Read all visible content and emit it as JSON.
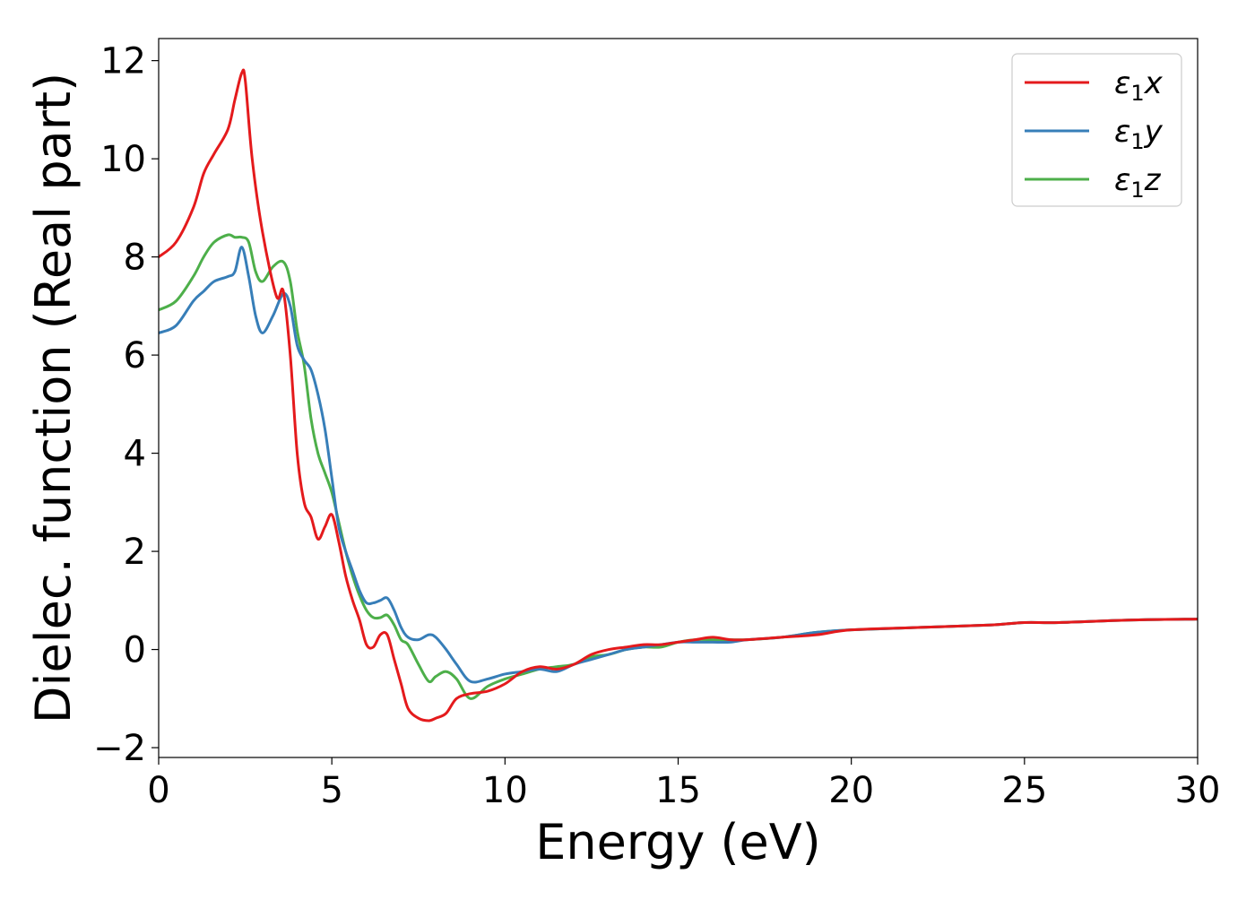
{
  "chart_data": {
    "type": "line",
    "xlabel": "Energy (eV)",
    "ylabel": "Dielec. function (Real part)",
    "xlim": [
      0,
      30
    ],
    "ylim": [
      -2.2,
      12.45
    ],
    "xticks": [
      0,
      5,
      10,
      15,
      20,
      25,
      30
    ],
    "yticks": [
      -2,
      0,
      2,
      4,
      6,
      8,
      10,
      12
    ],
    "xtick_labels": [
      "0",
      "5",
      "10",
      "15",
      "20",
      "25",
      "30"
    ],
    "ytick_labels": [
      "−2",
      "0",
      "2",
      "4",
      "6",
      "8",
      "10",
      "12"
    ],
    "grid": false,
    "legend_position": "top-right",
    "series": [
      {
        "name": "ε1x",
        "legend": {
          "base": "ε",
          "sub": "1",
          "axis": "x"
        },
        "color": "#e41a1c",
        "x": [
          0,
          0.5,
          1.0,
          1.3,
          1.6,
          2.0,
          2.2,
          2.4,
          2.5,
          2.7,
          3.0,
          3.4,
          3.6,
          3.8,
          4.0,
          4.2,
          4.4,
          4.6,
          4.8,
          5.0,
          5.2,
          5.4,
          5.6,
          5.8,
          6.0,
          6.2,
          6.4,
          6.6,
          6.8,
          7.0,
          7.2,
          7.5,
          7.8,
          8.0,
          8.3,
          8.6,
          9.0,
          9.5,
          10.0,
          10.5,
          11.0,
          11.5,
          12.0,
          12.5,
          13.0,
          13.5,
          14.0,
          14.5,
          15.0,
          15.5,
          16.0,
          16.5,
          17.0,
          18.0,
          19.0,
          20.0,
          22.0,
          24.0,
          25.0,
          26.0,
          28.0,
          30.0
        ],
        "y": [
          8.0,
          8.3,
          9.0,
          9.7,
          10.1,
          10.6,
          11.2,
          11.75,
          11.6,
          10.0,
          8.5,
          7.2,
          7.3,
          6.0,
          4.0,
          3.0,
          2.7,
          2.25,
          2.5,
          2.75,
          2.2,
          1.5,
          1.0,
          0.6,
          0.1,
          0.05,
          0.3,
          0.3,
          -0.2,
          -0.7,
          -1.2,
          -1.4,
          -1.45,
          -1.4,
          -1.3,
          -1.0,
          -0.9,
          -0.85,
          -0.7,
          -0.45,
          -0.35,
          -0.4,
          -0.3,
          -0.1,
          0.0,
          0.05,
          0.1,
          0.1,
          0.15,
          0.2,
          0.25,
          0.2,
          0.2,
          0.25,
          0.3,
          0.4,
          0.45,
          0.5,
          0.55,
          0.55,
          0.6,
          0.62
        ]
      },
      {
        "name": "ε1y",
        "legend": {
          "base": "ε",
          "sub": "1",
          "axis": "y"
        },
        "color": "#377eb8",
        "x": [
          0,
          0.5,
          1.0,
          1.3,
          1.6,
          2.0,
          2.2,
          2.4,
          2.6,
          2.8,
          3.0,
          3.3,
          3.6,
          3.8,
          4.0,
          4.2,
          4.4,
          4.6,
          4.8,
          5.0,
          5.2,
          5.4,
          5.6,
          5.8,
          6.0,
          6.2,
          6.4,
          6.6,
          6.8,
          7.0,
          7.2,
          7.5,
          7.8,
          8.0,
          8.3,
          8.6,
          9.0,
          9.5,
          10.0,
          10.5,
          11.0,
          11.5,
          12.0,
          12.5,
          13.0,
          13.5,
          14.0,
          14.5,
          15.0,
          15.5,
          16.0,
          16.5,
          17.0,
          18.0,
          19.0,
          20.0,
          22.0,
          24.0,
          25.0,
          26.0,
          28.0,
          30.0
        ],
        "y": [
          6.45,
          6.6,
          7.1,
          7.3,
          7.5,
          7.6,
          7.7,
          8.2,
          7.6,
          6.8,
          6.45,
          6.8,
          7.25,
          7.0,
          6.2,
          5.9,
          5.7,
          5.2,
          4.5,
          3.5,
          2.5,
          2.0,
          1.6,
          1.2,
          0.95,
          0.95,
          1.0,
          1.05,
          0.8,
          0.45,
          0.25,
          0.2,
          0.3,
          0.25,
          0.0,
          -0.3,
          -0.65,
          -0.6,
          -0.5,
          -0.45,
          -0.4,
          -0.45,
          -0.3,
          -0.2,
          -0.1,
          0.0,
          0.05,
          0.1,
          0.15,
          0.15,
          0.15,
          0.15,
          0.2,
          0.25,
          0.35,
          0.4,
          0.45,
          0.5,
          0.55,
          0.55,
          0.6,
          0.62
        ]
      },
      {
        "name": "ε1z",
        "legend": {
          "base": "ε",
          "sub": "1",
          "axis": "z"
        },
        "color": "#4daf4a",
        "x": [
          0,
          0.5,
          1.0,
          1.3,
          1.6,
          2.0,
          2.2,
          2.4,
          2.6,
          2.8,
          3.0,
          3.3,
          3.6,
          3.8,
          4.0,
          4.2,
          4.4,
          4.6,
          4.8,
          5.0,
          5.2,
          5.4,
          5.6,
          5.8,
          6.0,
          6.2,
          6.4,
          6.6,
          6.8,
          7.0,
          7.2,
          7.5,
          7.8,
          8.0,
          8.3,
          8.6,
          9.0,
          9.5,
          10.0,
          10.5,
          11.0,
          11.5,
          12.0,
          12.5,
          13.0,
          13.5,
          14.0,
          14.5,
          15.0,
          15.5,
          16.0,
          16.5,
          17.0,
          18.0,
          19.0,
          20.0,
          22.0,
          24.0,
          25.0,
          26.0,
          28.0,
          30.0
        ],
        "y": [
          6.92,
          7.1,
          7.6,
          8.0,
          8.3,
          8.45,
          8.4,
          8.4,
          8.3,
          7.7,
          7.5,
          7.8,
          7.9,
          7.5,
          6.5,
          5.8,
          4.7,
          4.0,
          3.6,
          3.2,
          2.6,
          2.0,
          1.5,
          1.1,
          0.8,
          0.65,
          0.65,
          0.7,
          0.5,
          0.2,
          0.1,
          -0.3,
          -0.65,
          -0.55,
          -0.45,
          -0.6,
          -1.0,
          -0.75,
          -0.6,
          -0.5,
          -0.4,
          -0.35,
          -0.3,
          -0.15,
          -0.1,
          0.0,
          0.05,
          0.05,
          0.15,
          0.2,
          0.2,
          0.2,
          0.2,
          0.25,
          0.35,
          0.4,
          0.45,
          0.5,
          0.55,
          0.55,
          0.6,
          0.62
        ]
      }
    ]
  }
}
